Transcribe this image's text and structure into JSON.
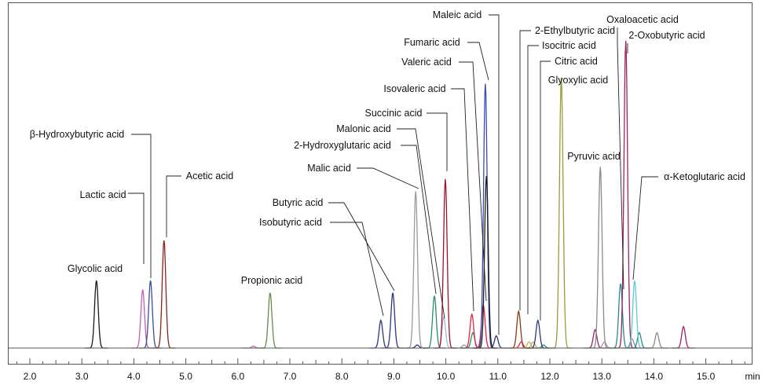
{
  "chart_data": {
    "type": "line",
    "xlabel": "min",
    "ylabel": "",
    "xlim": [
      1.6,
      16.8
    ],
    "ylim": [
      0,
      100
    ],
    "x_ticks": [
      "2.0",
      "3.0",
      "4.0",
      "5.0",
      "6.0",
      "7.0",
      "8.0",
      "9.0",
      "10.0",
      "11.0",
      "12.0",
      "13.0",
      "14.0",
      "15.0"
    ],
    "series": [
      {
        "name": "Glycolic acid",
        "color": "#1a1a1a",
        "rt": 3.28,
        "height": 22
      },
      {
        "name": "Lactic acid",
        "color": "#c060b0",
        "rt": 4.17,
        "height": 19
      },
      {
        "name": "β-Hydroxybutyric acid",
        "color": "#3a4f9a",
        "rt": 4.32,
        "height": 22
      },
      {
        "name": "Acetic acid",
        "color": "#8b2318",
        "rt": 4.58,
        "height": 35
      },
      {
        "name": "Propionic acid",
        "color": "#6b8a4a",
        "rt": 6.62,
        "height": 18
      },
      {
        "name": "Isobutyric acid",
        "color": "#2a3580",
        "rt": 8.75,
        "height": 9
      },
      {
        "name": "Butyric acid",
        "color": "#2a3580",
        "rt": 8.98,
        "height": 18
      },
      {
        "name": "Malic acid",
        "color": "#9a9a9a",
        "rt": 9.42,
        "height": 51
      },
      {
        "name": "2-Hydroxyglutaric acid",
        "color": "#2e8a70",
        "rt": 9.78,
        "height": 17
      },
      {
        "name": "Malonic acid",
        "color": "#a0b8d8",
        "rt": 9.96,
        "height": 10
      },
      {
        "name": "Succinic acid",
        "color": "#a0102e",
        "rt": 9.99,
        "height": 55
      },
      {
        "name": "Isovaleric acid",
        "color": "#e8203c",
        "rt": 10.5,
        "height": 11
      },
      {
        "name": "Valeric acid",
        "color": "#e8203c",
        "rt": 10.72,
        "height": 14
      },
      {
        "name": "Fumaric acid",
        "color": "#3a4ab0",
        "rt": 10.76,
        "height": 86
      },
      {
        "name": "Maleic acid",
        "color": "#1a1a1a",
        "rt": 10.78,
        "height": 56
      },
      {
        "name": "2-Ethylbutyric acid",
        "color": "#8b3a10",
        "rt": 11.4,
        "height": 12
      },
      {
        "name": "Isocitric acid",
        "color": "#c0b060",
        "rt": 11.6,
        "height": 2
      },
      {
        "name": "Citric acid",
        "color": "#2a3580",
        "rt": 11.77,
        "height": 9
      },
      {
        "name": "Glyoxylic acid",
        "color": "#9a9a3a",
        "rt": 12.22,
        "height": 88
      },
      {
        "name": "Pyruvic acid",
        "color": "#8a8a8a",
        "rt": 12.97,
        "height": 59
      },
      {
        "name": "Oxaloacetic acid",
        "color": "#2a8a8a",
        "rt": 13.36,
        "height": 21
      },
      {
        "name": "2-Oxobutyric acid",
        "color": "#a0206a",
        "rt": 13.46,
        "height": 100
      },
      {
        "name": "α-Ketoglutaric acid",
        "color": "#60c8d0",
        "rt": 13.63,
        "height": 22
      }
    ],
    "minor_peaks": [
      {
        "color": "#c060b0",
        "rt": 6.3,
        "height": 0.6
      },
      {
        "color": "#2a3580",
        "rt": 9.45,
        "height": 1
      },
      {
        "color": "#9a9a9a",
        "rt": 10.35,
        "height": 1
      },
      {
        "color": "#2e8a70",
        "rt": 10.52,
        "height": 5
      },
      {
        "color": "#2a3580",
        "rt": 10.97,
        "height": 4
      },
      {
        "color": "#e8203c",
        "rt": 11.45,
        "height": 2
      },
      {
        "color": "#c0b060",
        "rt": 11.68,
        "height": 2
      },
      {
        "color": "#2e8a70",
        "rt": 11.88,
        "height": 1
      },
      {
        "color": "#a0206a",
        "rt": 12.87,
        "height": 6
      },
      {
        "color": "#9a9a9a",
        "rt": 13.05,
        "height": 2
      },
      {
        "color": "#8a8a8a",
        "rt": 13.58,
        "height": 3
      },
      {
        "color": "#2a8a8a",
        "rt": 13.72,
        "height": 5
      },
      {
        "color": "#8a8a8a",
        "rt": 14.06,
        "height": 5
      },
      {
        "color": "#a0206a",
        "rt": 14.57,
        "height": 7
      }
    ]
  }
}
